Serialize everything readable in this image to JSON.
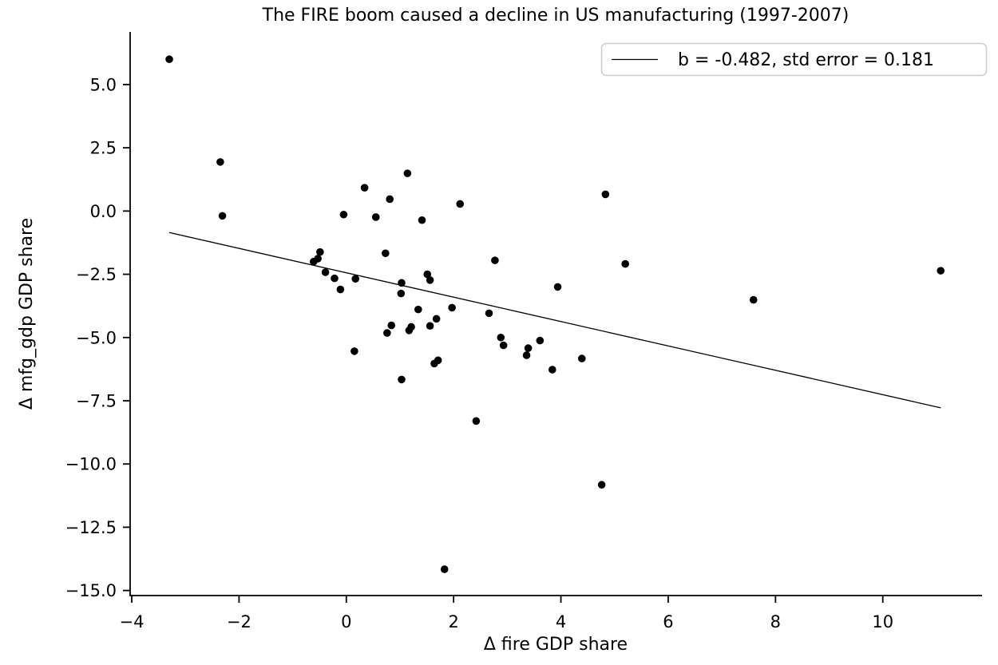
{
  "title": "The FIRE boom caused a decline in US manufacturing (1997-2007)",
  "chart_data": {
    "type": "scatter",
    "title": "The FIRE boom caused a decline in US manufacturing (1997-2007)",
    "xlabel": "Δ fire GDP share",
    "ylabel": "Δ mfg_gdp GDP share",
    "xlim": [
      -4.03,
      11.85
    ],
    "ylim": [
      -15.2,
      7.08
    ],
    "grid": false,
    "marker_color": "#000000",
    "line_color": "#000000",
    "x_ticks": {
      "values": [
        -4,
        -2,
        0,
        2,
        4,
        6,
        8,
        10
      ],
      "labels": [
        "−4",
        "−2",
        "0",
        "2",
        "4",
        "6",
        "8",
        "10"
      ]
    },
    "y_ticks": {
      "values": [
        5.0,
        2.5,
        0.0,
        -2.5,
        -5.0,
        -7.5,
        -10.0,
        -12.5,
        -15.0
      ],
      "labels": [
        "5.0",
        "2.5",
        "0.0",
        "−2.5",
        "−5.0",
        "−7.5",
        "−10.0",
        "−12.5",
        "−15.0"
      ]
    },
    "points": [
      [
        -3.3,
        6.0
      ],
      [
        -2.35,
        1.94
      ],
      [
        -2.31,
        -0.19
      ],
      [
        -0.05,
        -0.14
      ],
      [
        0.34,
        0.92
      ],
      [
        0.81,
        0.47
      ],
      [
        1.14,
        1.49
      ],
      [
        0.55,
        -0.24
      ],
      [
        1.41,
        -0.36
      ],
      [
        0.73,
        -1.67
      ],
      [
        -0.49,
        -1.62
      ],
      [
        -0.53,
        -1.88
      ],
      [
        -0.61,
        -2.0
      ],
      [
        -0.39,
        -2.42
      ],
      [
        -0.22,
        -2.66
      ],
      [
        -0.11,
        -3.1
      ],
      [
        0.17,
        -2.68
      ],
      [
        1.03,
        -2.84
      ],
      [
        1.02,
        -3.26
      ],
      [
        1.51,
        -2.5
      ],
      [
        1.56,
        -2.73
      ],
      [
        1.34,
        -3.89
      ],
      [
        1.68,
        -4.26
      ],
      [
        0.84,
        -4.52
      ],
      [
        0.76,
        -4.82
      ],
      [
        1.21,
        -4.58
      ],
      [
        1.17,
        -4.72
      ],
      [
        1.56,
        -4.54
      ],
      [
        0.15,
        -5.54
      ],
      [
        1.64,
        -6.03
      ],
      [
        1.71,
        -5.9
      ],
      [
        1.03,
        -6.66
      ],
      [
        2.12,
        0.28
      ],
      [
        2.77,
        -1.95
      ],
      [
        4.83,
        0.66
      ],
      [
        5.2,
        -2.09
      ],
      [
        3.94,
        -3.0
      ],
      [
        7.59,
        -3.51
      ],
      [
        11.08,
        -2.36
      ],
      [
        1.97,
        -3.82
      ],
      [
        2.66,
        -4.04
      ],
      [
        2.88,
        -5.0
      ],
      [
        2.93,
        -5.31
      ],
      [
        3.39,
        -5.42
      ],
      [
        3.36,
        -5.7
      ],
      [
        3.61,
        -5.12
      ],
      [
        3.84,
        -6.27
      ],
      [
        4.39,
        -5.83
      ],
      [
        2.42,
        -8.3
      ],
      [
        4.76,
        -10.82
      ],
      [
        1.83,
        -14.16
      ]
    ],
    "regression_line": {
      "x1": -3.3,
      "y1": -0.85,
      "x2": 11.08,
      "y2": -7.78,
      "slope": -0.482,
      "std_error": 0.181
    },
    "legend": {
      "label": "b = -0.482, std error = 0.181",
      "position": "upper right"
    }
  }
}
